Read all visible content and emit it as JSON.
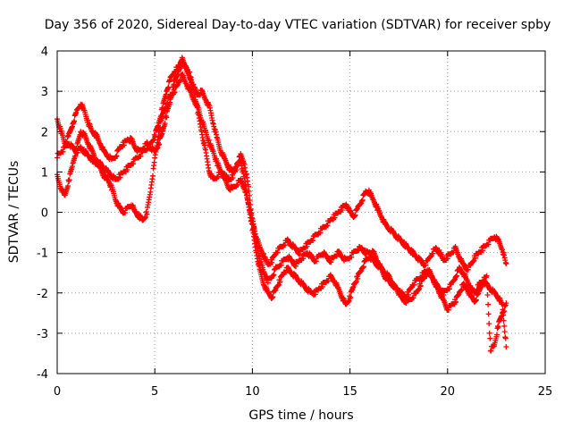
{
  "chart_data": {
    "type": "scatter",
    "title": "Day 356 of 2020, Sidereal Day-to-day VTEC variation (SDTVAR) for receiver spby",
    "xlabel": "GPS time / hours",
    "ylabel": "SDTVAR / TECUs",
    "xlim": [
      0,
      25
    ],
    "ylim": [
      -4,
      4
    ],
    "x_ticks": [
      "0",
      "5",
      "10",
      "15",
      "20",
      "25"
    ],
    "y_ticks": [
      "4",
      "3",
      "2",
      "1",
      "0",
      "-1",
      "-2",
      "-3",
      "-4"
    ],
    "x_tick_values": [
      0,
      5,
      10,
      15,
      20,
      25
    ],
    "y_tick_values": [
      4,
      3,
      2,
      1,
      0,
      -1,
      -2,
      -3,
      -4
    ],
    "grid": true,
    "marker": "+",
    "series": [
      {
        "name": "SDTVAR",
        "color": "#ff0000",
        "x": [
          0,
          0.2,
          0.4,
          0.6,
          0.8,
          1.0,
          1.2,
          1.4,
          1.6,
          1.8,
          2.0,
          2.2,
          2.4,
          2.6,
          2.8,
          3.0,
          3.2,
          3.4,
          3.6,
          3.8,
          4.0,
          4.2,
          4.4,
          4.6,
          4.8,
          5.0,
          5.2,
          5.4,
          5.6,
          5.8,
          6.0,
          6.2,
          6.4,
          6.6,
          6.8,
          7.0,
          7.2,
          7.4,
          7.6,
          7.8,
          8.0,
          8.2,
          8.4,
          8.6,
          8.8,
          9.0,
          9.2,
          9.4,
          9.6,
          9.8,
          10.0,
          10.2,
          10.4,
          10.6,
          10.8,
          11.0,
          11.2,
          11.4,
          11.6,
          11.8,
          12.0,
          12.2,
          12.4,
          12.6,
          12.8,
          13.0,
          13.2,
          13.4,
          13.6,
          13.8,
          14.0,
          14.2,
          14.4,
          14.6,
          14.8,
          15.0,
          15.2,
          15.4,
          15.6,
          15.8,
          16.0,
          16.2,
          16.4,
          16.6,
          16.8,
          17.0,
          17.2,
          17.4,
          17.6,
          17.8,
          18.0,
          18.2,
          18.4,
          18.6,
          18.8,
          19.0,
          19.2,
          19.4,
          19.6,
          19.8,
          20.0,
          20.2,
          20.4,
          20.6,
          20.8,
          21.0,
          21.2,
          21.4,
          21.6,
          21.8,
          22.0,
          22.2,
          22.4,
          22.6,
          22.8,
          23.0
        ],
        "ylines": [
          [
            1.4,
            1.5,
            1.6,
            1.7,
            1.6,
            1.5,
            1.6,
            1.5,
            1.4,
            1.3,
            1.2,
            1.2,
            1.1,
            1.0,
            0.9,
            0.8,
            0.9,
            1.0,
            1.1,
            1.2,
            1.3,
            1.4,
            1.5,
            1.6,
            1.7,
            1.9,
            2.2,
            2.6,
            3.0,
            3.3,
            3.5,
            3.6,
            3.7,
            3.6,
            3.4,
            3.0,
            2.5,
            2.0,
            1.5,
            1.0,
            0.8,
            0.9,
            1.0,
            0.9,
            0.8,
            0.9,
            1.2,
            1.4,
            1.2,
            0.6,
            -0.2,
            -0.8,
            -1.2,
            -1.5,
            -1.7,
            -1.6,
            -1.4,
            -1.3,
            -1.2,
            -1.1,
            -1.2,
            -1.3,
            -1.2,
            -1.1,
            -1.0,
            -1.1,
            -1.2,
            -1.1,
            -1.0,
            -1.1,
            -1.2,
            -1.1,
            -1.0,
            -1.1,
            -1.2,
            -1.1,
            -1.0,
            -0.9,
            -0.9,
            -1.0,
            -1.0,
            -1.0,
            -1.2,
            -1.4,
            -1.5,
            -1.6,
            -1.8,
            -1.9,
            -2.0,
            -2.1,
            -2.0,
            -1.8,
            -1.7,
            -1.6,
            -1.5,
            -1.4,
            -1.6,
            -1.8,
            -1.9,
            -2.0,
            -1.9,
            -1.8,
            -1.6,
            -1.4,
            -1.5,
            -1.7,
            -1.9,
            -2.0,
            -1.8,
            -1.7,
            -1.8,
            -1.9,
            -2.0,
            -2.1,
            -2.3,
            -3.3
          ],
          [
            0.9,
            0.6,
            0.4,
            0.8,
            1.2,
            1.6,
            2.0,
            1.9,
            1.7,
            1.5,
            1.3,
            1.1,
            0.9,
            0.8,
            0.6,
            0.3,
            0.1,
            0.0,
            0.1,
            0.2,
            0.0,
            -0.1,
            -0.2,
            0.0,
            0.6,
            1.3,
            2.0,
            2.4,
            2.7,
            2.9,
            3.0,
            3.2,
            3.4,
            3.2,
            3.0,
            2.8,
            2.6,
            2.3,
            2.0,
            1.7,
            1.5,
            1.2,
            1.0,
            0.8,
            0.6,
            0.6,
            0.7,
            0.8,
            0.6,
            0.2,
            -0.4,
            -1.0,
            -1.5,
            -1.8,
            -2.0,
            -2.1,
            -1.9,
            -1.7,
            -1.5,
            -1.4,
            -1.5,
            -1.6,
            -1.7,
            -1.8,
            -1.9,
            -2.0,
            -2.0,
            -1.9,
            -1.8,
            -1.7,
            -1.6,
            -1.7,
            -1.9,
            -2.1,
            -2.3,
            -2.1,
            -1.8,
            -1.6,
            -1.4,
            -1.2,
            -1.1,
            -1.2,
            -1.3,
            -1.4,
            -1.6,
            -1.7,
            -1.8,
            -1.9,
            -2.1,
            -2.2,
            -2.2,
            -2.1,
            -2.0,
            -1.8,
            -1.6,
            -1.5,
            -1.6,
            -1.8,
            -2.0,
            -2.2,
            -2.4,
            -2.3,
            -2.2,
            -2.0,
            -1.8,
            -1.9,
            -2.1,
            -2.2,
            -2.0,
            -1.7,
            -1.6,
            -3.4,
            -3.3,
            -2.8,
            -2.5,
            -2.3
          ],
          [
            2.3,
            2.0,
            1.7,
            1.9,
            2.2,
            2.5,
            2.7,
            2.5,
            2.2,
            2.0,
            1.9,
            1.7,
            1.5,
            1.4,
            1.3,
            1.4,
            1.6,
            1.7,
            1.8,
            1.8,
            1.6,
            1.5,
            1.6,
            1.7,
            1.6,
            1.5,
            1.7,
            2.0,
            2.4,
            2.8,
            3.2,
            3.5,
            3.8,
            3.6,
            3.3,
            3.1,
            2.9,
            3.0,
            2.8,
            2.6,
            2.2,
            1.8,
            1.5,
            1.3,
            1.1,
            1.0,
            1.1,
            1.3,
            0.8,
            0.2,
            -0.2,
            -0.6,
            -0.9,
            -1.1,
            -1.3,
            -1.2,
            -1.0,
            -0.9,
            -0.8,
            -0.7,
            -0.8,
            -0.9,
            -1.0,
            -0.9,
            -0.8,
            -0.7,
            -0.6,
            -0.5,
            -0.4,
            -0.3,
            -0.2,
            -0.1,
            0.0,
            0.1,
            0.2,
            0.0,
            -0.1,
            0.1,
            0.3,
            0.5,
            0.5,
            0.3,
            0.1,
            -0.1,
            -0.3,
            -0.4,
            -0.5,
            -0.6,
            -0.7,
            -0.8,
            -0.9,
            -1.0,
            -1.1,
            -1.2,
            -1.3,
            -1.2,
            -1.0,
            -0.9,
            -1.0,
            -1.2,
            -1.1,
            -1.0,
            -0.9,
            -1.1,
            -1.3,
            -1.4,
            -1.3,
            -1.1,
            -1.0,
            -0.9,
            -0.8,
            -0.7,
            -0.6,
            -0.7,
            -0.9,
            -1.3
          ]
        ]
      }
    ]
  }
}
